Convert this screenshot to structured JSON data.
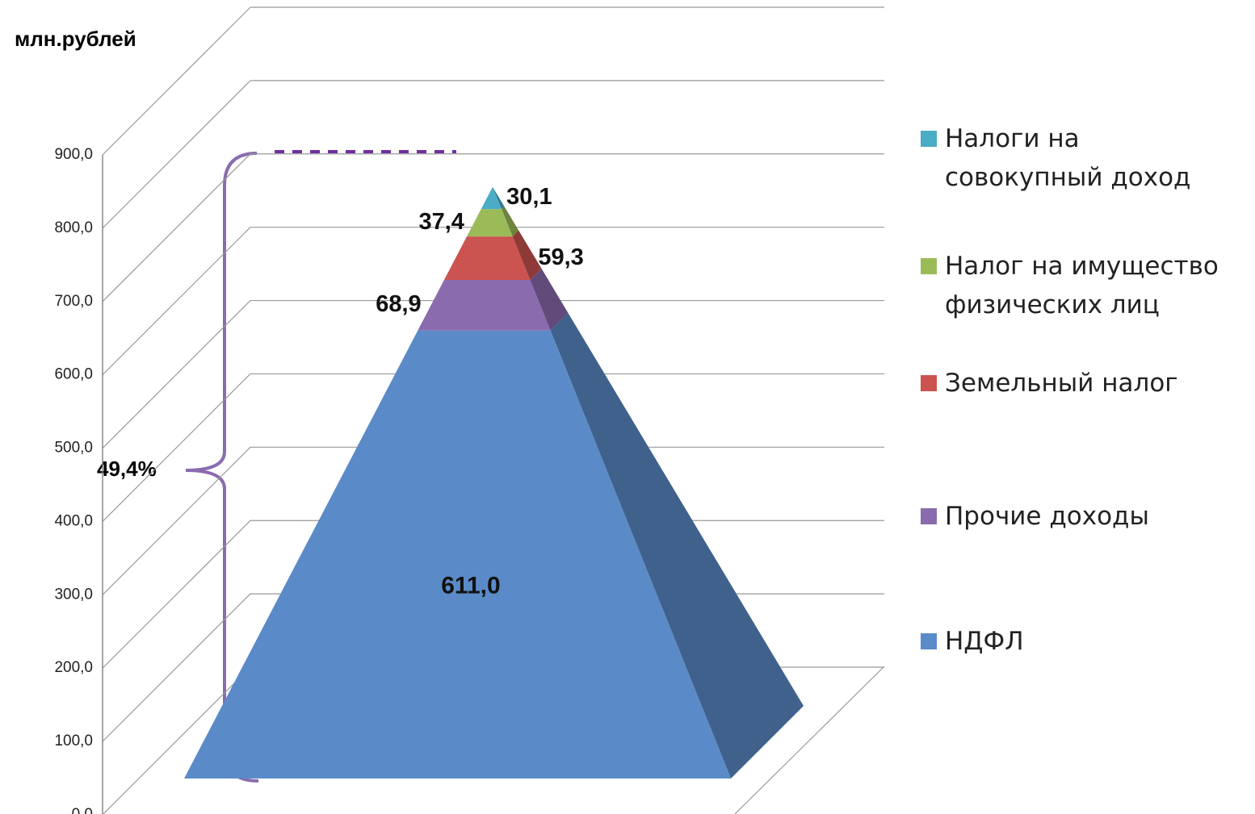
{
  "chart_data": {
    "type": "pyramid",
    "y_label": "млн.рублей",
    "annotation": "49,4%",
    "categories": [
      "НДФЛ",
      "Прочие доходы",
      "Земельный налог",
      "Налог на имущество физических лиц",
      "Налоги на совокупный доход"
    ],
    "values": [
      611.0,
      68.9,
      59.3,
      37.4,
      30.1
    ],
    "value_labels": [
      "611,0",
      "68,9",
      "59,3",
      "37,4",
      "30,1"
    ],
    "colors": [
      "#5a8bc8",
      "#8a6bae",
      "#cb5350",
      "#9bbb59",
      "#4bacc6"
    ],
    "ylim": [
      0,
      900
    ],
    "yticks": [
      {
        "value": 0,
        "label": "0,0"
      },
      {
        "value": 100,
        "label": "100,0"
      },
      {
        "value": 200,
        "label": "200,0"
      },
      {
        "value": 300,
        "label": "300,0"
      },
      {
        "value": 400,
        "label": "400,0"
      },
      {
        "value": 500,
        "label": "500,0"
      },
      {
        "value": 600,
        "label": "600,0"
      },
      {
        "value": 700,
        "label": "700,0"
      },
      {
        "value": 800,
        "label": "800,0"
      },
      {
        "value": 900,
        "label": "900,0"
      }
    ],
    "grid": true
  }
}
